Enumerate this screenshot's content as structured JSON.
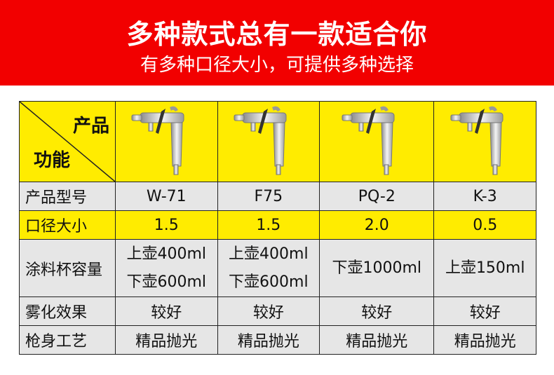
{
  "banner": {
    "title": "多种款式总有一款适合你",
    "subtitle": "有多种口径大小，可提供多种选择"
  },
  "table": {
    "corner_top": "产品",
    "corner_bottom": "功能",
    "row_labels": [
      "产品型号",
      "口径大小",
      "涂料杯容量",
      "雾化效果",
      "枪身工艺"
    ],
    "products": [
      {
        "image": "spray-gun-icon",
        "model": "W-71",
        "caliber": "1.5",
        "capacity": [
          "上壶400ml",
          "下壶600ml"
        ],
        "atomization": "较好",
        "finish": "精品抛光"
      },
      {
        "image": "spray-gun-icon",
        "model": "F75",
        "caliber": "1.5",
        "capacity": [
          "上壶400ml",
          "下壶600ml"
        ],
        "atomization": "较好",
        "finish": "精品抛光"
      },
      {
        "image": "spray-gun-icon",
        "model": "PQ-2",
        "caliber": "2.0",
        "capacity": [
          "下壶1000ml"
        ],
        "atomization": "较好",
        "finish": "精品抛光"
      },
      {
        "image": "spray-gun-icon",
        "model": "K-3",
        "caliber": "0.5",
        "capacity": [
          "上壶150ml"
        ],
        "atomization": "较好",
        "finish": "精品抛光"
      }
    ]
  },
  "colors": {
    "banner": "#f20000",
    "highlight": "#ffec00",
    "row": "#e6e6e6"
  }
}
